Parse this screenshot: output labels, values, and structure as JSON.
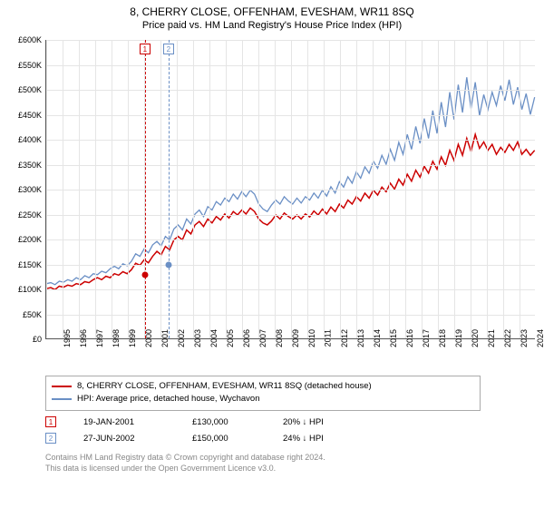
{
  "title": "8, CHERRY CLOSE, OFFENHAM, EVESHAM, WR11 8SQ",
  "subtitle": "Price paid vs. HM Land Registry's House Price Index (HPI)",
  "chart": {
    "type": "line",
    "background_color": "#ffffff",
    "grid_color": "#e5e5e5",
    "axis_color": "#555555",
    "label_fontsize": 9,
    "x_years": [
      1995,
      1996,
      1997,
      1998,
      1999,
      2000,
      2001,
      2002,
      2003,
      2004,
      2005,
      2006,
      2007,
      2008,
      2009,
      2010,
      2011,
      2012,
      2013,
      2014,
      2015,
      2016,
      2017,
      2018,
      2019,
      2020,
      2021,
      2022,
      2023,
      2024
    ],
    "ylim": [
      0,
      600000
    ],
    "ytick_step": 50000,
    "y_prefix": "£",
    "y_suffix_k": true,
    "series": [
      {
        "name": "property",
        "label": "8, CHERRY CLOSE, OFFENHAM, EVESHAM, WR11 8SQ (detached house)",
        "color": "#cc0000",
        "width": 1.5,
        "data_raw": [
          100,
          102,
          98,
          105,
          103,
          107,
          105,
          110,
          108,
          114,
          112,
          118,
          122,
          118,
          125,
          122,
          130,
          127,
          134,
          130,
          138,
          151,
          147,
          158,
          152,
          165,
          175,
          168,
          185,
          178,
          198,
          205,
          198,
          218,
          210,
          228,
          235,
          225,
          240,
          232,
          245,
          238,
          250,
          242,
          255,
          248,
          258,
          250,
          262,
          255,
          240,
          232,
          228,
          236,
          248,
          240,
          252,
          245,
          240,
          248,
          240,
          250,
          244,
          256,
          248,
          260,
          250,
          264,
          255,
          270,
          262,
          278,
          270,
          285,
          276,
          292,
          282,
          298,
          288,
          304,
          295,
          312,
          300,
          320,
          308,
          330,
          316,
          338,
          324,
          346,
          332,
          356,
          340,
          365,
          348,
          378,
          358,
          390,
          368,
          402,
          376,
          410,
          382,
          395,
          378,
          390,
          370,
          384,
          374,
          390,
          378,
          395,
          370,
          380,
          368,
          378
        ]
      },
      {
        "name": "hpi",
        "label": "HPI: Average price, detached house, Wychavon",
        "color": "#6a8fc5",
        "width": 1.3,
        "data_raw": [
          110,
          112,
          108,
          115,
          113,
          118,
          115,
          122,
          118,
          126,
          122,
          130,
          128,
          135,
          132,
          140,
          145,
          140,
          150,
          146,
          155,
          170,
          165,
          180,
          172,
          188,
          195,
          186,
          205,
          198,
          220,
          228,
          218,
          240,
          230,
          250,
          258,
          245,
          265,
          258,
          275,
          268,
          282,
          275,
          290,
          280,
          295,
          285,
          298,
          290,
          270,
          260,
          255,
          268,
          278,
          270,
          285,
          276,
          270,
          282,
          272,
          285,
          278,
          292,
          282,
          298,
          286,
          305,
          292,
          315,
          304,
          325,
          312,
          335,
          322,
          345,
          332,
          356,
          342,
          368,
          350,
          380,
          358,
          394,
          370,
          410,
          380,
          426,
          392,
          442,
          402,
          458,
          412,
          475,
          425,
          495,
          440,
          510,
          454,
          525,
          462,
          515,
          448,
          490,
          460,
          495,
          468,
          508,
          478,
          520,
          470,
          505,
          460,
          492,
          450,
          485
        ]
      }
    ],
    "events": [
      {
        "num": "1",
        "color": "#cc0000",
        "year": 2001.05,
        "price_k": 130
      },
      {
        "num": "2",
        "color": "#6a8fc5",
        "year": 2002.49,
        "price_k": 150
      }
    ]
  },
  "legend_items": [
    {
      "color": "#cc0000",
      "label": "8, CHERRY CLOSE, OFFENHAM, EVESHAM, WR11 8SQ (detached house)"
    },
    {
      "color": "#6a8fc5",
      "label": "HPI: Average price, detached house, Wychavon"
    }
  ],
  "event_rows": [
    {
      "num": "1",
      "color": "#cc0000",
      "date": "19-JAN-2001",
      "price": "£130,000",
      "pct": "20% ↓ HPI"
    },
    {
      "num": "2",
      "color": "#6a8fc5",
      "date": "27-JUN-2002",
      "price": "£150,000",
      "pct": "24% ↓ HPI"
    }
  ],
  "attribution": {
    "line1": "Contains HM Land Registry data © Crown copyright and database right 2024.",
    "line2": "This data is licensed under the Open Government Licence v3.0."
  }
}
